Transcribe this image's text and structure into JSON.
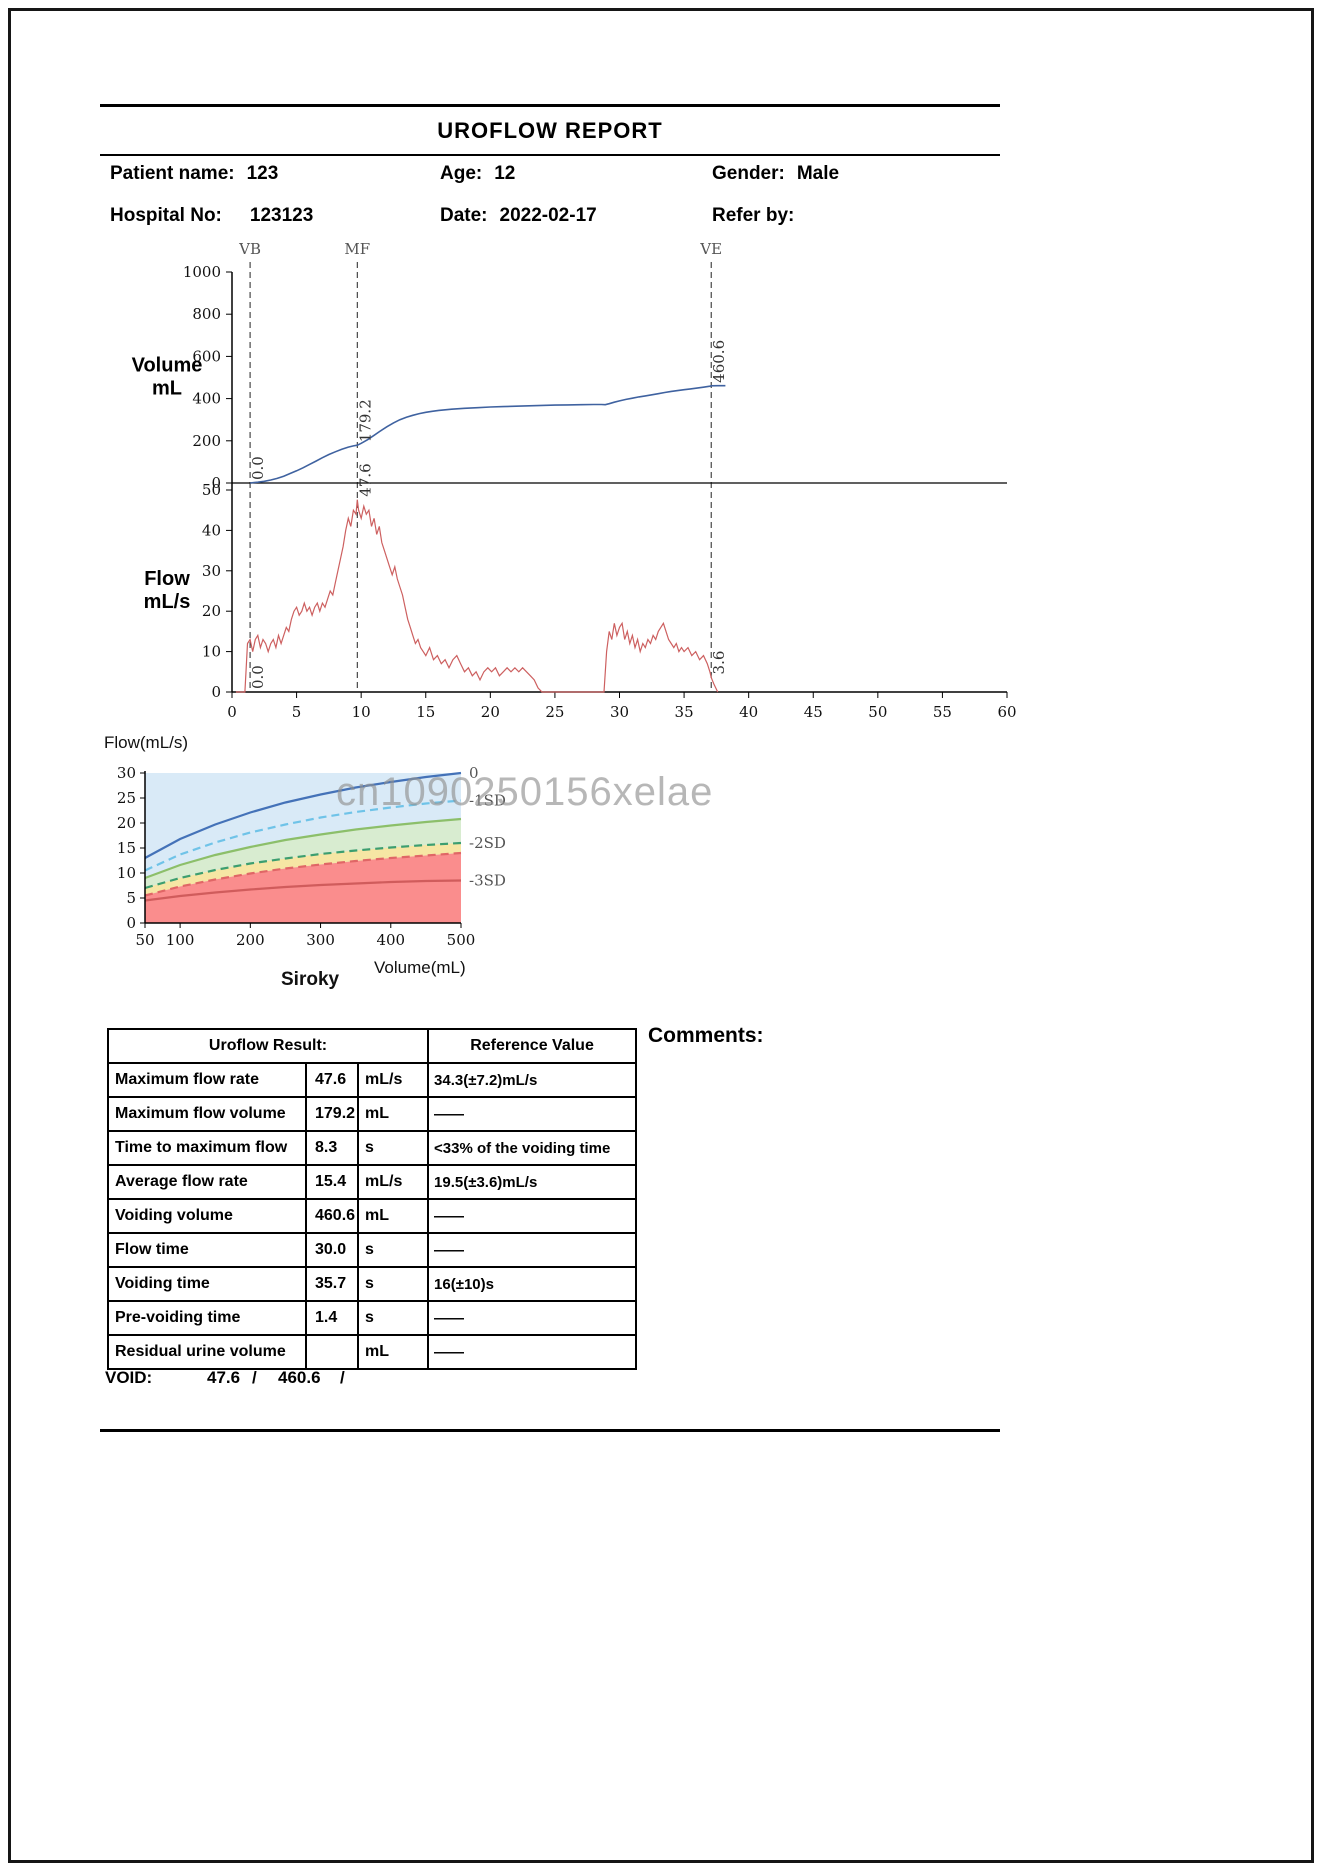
{
  "header": {
    "title": "UROFLOW REPORT",
    "fields": {
      "patient_label": "Patient name:",
      "patient_value": "123",
      "age_label": "Age:",
      "age_value": "12",
      "gender_label": "Gender:",
      "gender_value": "Male",
      "hospital_label": "Hospital No:",
      "hospital_value": "123123",
      "date_label": "Date:",
      "date_value": "2022-02-17",
      "refer_label": "Refer by:",
      "refer_value": ""
    }
  },
  "labels": {
    "flow_axis_caption": "Flow(mL/s)",
    "volume_axis_caption": "Volume(mL)",
    "nomogram_name": "Siroky",
    "comments": "Comments:",
    "void_label": "VOID:",
    "void_value1": "47.6",
    "void_sep1": "/",
    "void_value2": "460.6",
    "void_sep2": "/",
    "watermark": "cn1090250156xelae"
  },
  "result_table": {
    "header_result": "Uroflow Result:",
    "header_reference": "Reference Value",
    "rows": [
      {
        "label": "Maximum flow rate",
        "value": "47.6",
        "unit": "mL/s",
        "reference": "34.3(±7.2)mL/s"
      },
      {
        "label": "Maximum flow volume",
        "value": "179.2",
        "unit": "mL",
        "reference": "——"
      },
      {
        "label": "Time to maximum flow",
        "value": "8.3",
        "unit": "s",
        "reference": "<33% of the voiding time"
      },
      {
        "label": "Average flow rate",
        "value": "15.4",
        "unit": "mL/s",
        "reference": "19.5(±3.6)mL/s"
      },
      {
        "label": "Voiding volume",
        "value": "460.6",
        "unit": "mL",
        "reference": "——"
      },
      {
        "label": "Flow time",
        "value": "30.0",
        "unit": "s",
        "reference": "——"
      },
      {
        "label": "Voiding time",
        "value": "35.7",
        "unit": "s",
        "reference": "16(±10)s"
      },
      {
        "label": "Pre-voiding time",
        "value": "1.4",
        "unit": "s",
        "reference": "——"
      },
      {
        "label": "Residual urine volume",
        "value": "",
        "unit": "mL",
        "reference": "——"
      }
    ]
  },
  "chart_data": [
    {
      "type": "line",
      "title": "Volume",
      "ylabel_lines": [
        "Volume",
        "mL"
      ],
      "ylim": [
        0,
        1000
      ],
      "yticks": [
        0,
        200,
        400,
        600,
        800,
        1000
      ],
      "xlim": [
        0,
        60
      ],
      "color": "#3f62a0",
      "markers": [
        {
          "label": "VB",
          "x": 1.4
        },
        {
          "label": "MF",
          "x": 9.7
        },
        {
          "label": "VE",
          "x": 37.1
        }
      ],
      "annotations": [
        {
          "text": "0.0",
          "x": 1.4,
          "y": 0
        },
        {
          "text": "179.2",
          "x": 9.7,
          "y": 179.2
        },
        {
          "text": "460.6",
          "x": 37.1,
          "y": 460.6
        }
      ],
      "points": [
        [
          1.4,
          0
        ],
        [
          2,
          4
        ],
        [
          2.5,
          8
        ],
        [
          3,
          14
        ],
        [
          3.5,
          22
        ],
        [
          4,
          32
        ],
        [
          4.5,
          45
        ],
        [
          5,
          58
        ],
        [
          5.5,
          72
        ],
        [
          6,
          88
        ],
        [
          6.5,
          104
        ],
        [
          7,
          120
        ],
        [
          7.5,
          135
        ],
        [
          8,
          148
        ],
        [
          8.5,
          160
        ],
        [
          9,
          170
        ],
        [
          9.4,
          176
        ],
        [
          9.7,
          179.2
        ],
        [
          10,
          188
        ],
        [
          10.5,
          205
        ],
        [
          11,
          226
        ],
        [
          11.5,
          247
        ],
        [
          12,
          267
        ],
        [
          12.5,
          285
        ],
        [
          13,
          300
        ],
        [
          13.5,
          312
        ],
        [
          14,
          321
        ],
        [
          14.5,
          329
        ],
        [
          15,
          335
        ],
        [
          15.5,
          340
        ],
        [
          16,
          344
        ],
        [
          17,
          350
        ],
        [
          18,
          354
        ],
        [
          19,
          357
        ],
        [
          20,
          360
        ],
        [
          21,
          362
        ],
        [
          22,
          364
        ],
        [
          23,
          366
        ],
        [
          24,
          368
        ],
        [
          25,
          369
        ],
        [
          26,
          370
        ],
        [
          27,
          371
        ],
        [
          28,
          372
        ],
        [
          28.6,
          372
        ],
        [
          28.9,
          371
        ],
        [
          29.2,
          376
        ],
        [
          29.6,
          383
        ],
        [
          30,
          389
        ],
        [
          30.5,
          396
        ],
        [
          31,
          402
        ],
        [
          31.5,
          408
        ],
        [
          32,
          413
        ],
        [
          32.5,
          418
        ],
        [
          33,
          423
        ],
        [
          33.5,
          429
        ],
        [
          34,
          434
        ],
        [
          34.5,
          438
        ],
        [
          35,
          442
        ],
        [
          35.5,
          446
        ],
        [
          36,
          450
        ],
        [
          36.5,
          454
        ],
        [
          37,
          459
        ],
        [
          37.1,
          460.6
        ],
        [
          37.6,
          461
        ],
        [
          38.2,
          461
        ]
      ]
    },
    {
      "type": "line",
      "title": "Flow",
      "ylabel_lines": [
        "Flow",
        "mL/s"
      ],
      "ylim": [
        0,
        50
      ],
      "yticks": [
        0,
        10,
        20,
        30,
        40,
        50
      ],
      "xlim": [
        0,
        60
      ],
      "xticks": [
        0,
        5,
        10,
        15,
        20,
        25,
        30,
        35,
        40,
        45,
        50,
        55,
        60
      ],
      "color": "#cd6060",
      "annotations": [
        {
          "text": "0.0",
          "x": 1.4,
          "y": 0
        },
        {
          "text": "47.6",
          "x": 9.7,
          "y": 47.6
        },
        {
          "text": "3.6",
          "x": 37.1,
          "y": 3.6
        }
      ],
      "points": [
        [
          0.3,
          0
        ],
        [
          0.8,
          0
        ],
        [
          1.0,
          0
        ],
        [
          1.1,
          6
        ],
        [
          1.2,
          12
        ],
        [
          1.4,
          13
        ],
        [
          1.6,
          10
        ],
        [
          1.8,
          13
        ],
        [
          2.0,
          14
        ],
        [
          2.2,
          11
        ],
        [
          2.4,
          13
        ],
        [
          2.6,
          12
        ],
        [
          2.8,
          10
        ],
        [
          3.0,
          12
        ],
        [
          3.2,
          13
        ],
        [
          3.4,
          11
        ],
        [
          3.6,
          14
        ],
        [
          3.8,
          12
        ],
        [
          4.0,
          14
        ],
        [
          4.2,
          16
        ],
        [
          4.4,
          15
        ],
        [
          4.6,
          18
        ],
        [
          4.8,
          20
        ],
        [
          5.0,
          21
        ],
        [
          5.2,
          19
        ],
        [
          5.4,
          20
        ],
        [
          5.6,
          22
        ],
        [
          5.8,
          20
        ],
        [
          6.0,
          21
        ],
        [
          6.2,
          19
        ],
        [
          6.4,
          21
        ],
        [
          6.6,
          22
        ],
        [
          6.8,
          20
        ],
        [
          7.0,
          22
        ],
        [
          7.2,
          21
        ],
        [
          7.4,
          23
        ],
        [
          7.6,
          25
        ],
        [
          7.8,
          24
        ],
        [
          8.0,
          27
        ],
        [
          8.2,
          30
        ],
        [
          8.4,
          33
        ],
        [
          8.6,
          36
        ],
        [
          8.8,
          40
        ],
        [
          9.0,
          43
        ],
        [
          9.2,
          41
        ],
        [
          9.4,
          45
        ],
        [
          9.6,
          44
        ],
        [
          9.7,
          47.6
        ],
        [
          9.8,
          45
        ],
        [
          10.0,
          43
        ],
        [
          10.2,
          46
        ],
        [
          10.4,
          44
        ],
        [
          10.6,
          45
        ],
        [
          10.8,
          41
        ],
        [
          11.0,
          43
        ],
        [
          11.2,
          39
        ],
        [
          11.4,
          41
        ],
        [
          11.6,
          37
        ],
        [
          11.8,
          35
        ],
        [
          12.0,
          33
        ],
        [
          12.2,
          31
        ],
        [
          12.4,
          29
        ],
        [
          12.6,
          31
        ],
        [
          12.8,
          28
        ],
        [
          13.0,
          26
        ],
        [
          13.2,
          24
        ],
        [
          13.4,
          21
        ],
        [
          13.6,
          18
        ],
        [
          13.8,
          16
        ],
        [
          14.0,
          14
        ],
        [
          14.2,
          12
        ],
        [
          14.4,
          13
        ],
        [
          14.6,
          11
        ],
        [
          14.8,
          10
        ],
        [
          15.0,
          9
        ],
        [
          15.3,
          11
        ],
        [
          15.6,
          8
        ],
        [
          15.9,
          9
        ],
        [
          16.2,
          7
        ],
        [
          16.5,
          8
        ],
        [
          16.8,
          6
        ],
        [
          17.1,
          8
        ],
        [
          17.4,
          9
        ],
        [
          17.7,
          7
        ],
        [
          18.0,
          5
        ],
        [
          18.3,
          6
        ],
        [
          18.6,
          4
        ],
        [
          18.9,
          5
        ],
        [
          19.2,
          3
        ],
        [
          19.5,
          5
        ],
        [
          19.8,
          6
        ],
        [
          20.1,
          5
        ],
        [
          20.4,
          6
        ],
        [
          20.7,
          4
        ],
        [
          21.0,
          5
        ],
        [
          21.3,
          6
        ],
        [
          21.6,
          5
        ],
        [
          21.9,
          6
        ],
        [
          22.2,
          5
        ],
        [
          22.5,
          6
        ],
        [
          22.8,
          5
        ],
        [
          23.1,
          4
        ],
        [
          23.4,
          3
        ],
        [
          23.7,
          1
        ],
        [
          24.0,
          0
        ],
        [
          28.8,
          0
        ],
        [
          29.0,
          10
        ],
        [
          29.2,
          15
        ],
        [
          29.4,
          13
        ],
        [
          29.6,
          17
        ],
        [
          29.8,
          14
        ],
        [
          30.0,
          16
        ],
        [
          30.2,
          17
        ],
        [
          30.4,
          13
        ],
        [
          30.6,
          15
        ],
        [
          30.8,
          12
        ],
        [
          31.0,
          14
        ],
        [
          31.2,
          11
        ],
        [
          31.4,
          13
        ],
        [
          31.6,
          10
        ],
        [
          31.8,
          12
        ],
        [
          32.0,
          11
        ],
        [
          32.2,
          13
        ],
        [
          32.4,
          12
        ],
        [
          32.6,
          14
        ],
        [
          32.8,
          13
        ],
        [
          33.0,
          15
        ],
        [
          33.2,
          16
        ],
        [
          33.4,
          17
        ],
        [
          33.6,
          15
        ],
        [
          33.8,
          13
        ],
        [
          34.0,
          12
        ],
        [
          34.2,
          11
        ],
        [
          34.4,
          12
        ],
        [
          34.6,
          10
        ],
        [
          34.8,
          11
        ],
        [
          35.0,
          10
        ],
        [
          35.3,
          11
        ],
        [
          35.6,
          9
        ],
        [
          35.9,
          10
        ],
        [
          36.2,
          8
        ],
        [
          36.5,
          9
        ],
        [
          36.8,
          7
        ],
        [
          37.0,
          5
        ],
        [
          37.1,
          3.6
        ],
        [
          37.3,
          2
        ],
        [
          37.6,
          0
        ]
      ]
    },
    {
      "type": "area",
      "title": "Siroky nomogram",
      "xlabel": "Volume(mL)",
      "ylabel": "Flow(mL/s)",
      "xlim": [
        50,
        500
      ],
      "ylim": [
        0,
        30
      ],
      "xticks": [
        50,
        100,
        200,
        300,
        400,
        500
      ],
      "yticks": [
        0,
        5,
        10,
        15,
        20,
        25,
        30
      ],
      "bg_color": "#d9eaf7",
      "x": [
        50,
        100,
        150,
        200,
        250,
        300,
        350,
        400,
        450,
        500
      ],
      "curves": [
        {
          "name": "mean",
          "style": "solid",
          "color": "#4472b8",
          "values": [
            13,
            16.8,
            19.7,
            22.1,
            24.1,
            25.7,
            27.1,
            28.2,
            29.2,
            30
          ]
        },
        {
          "name": "-1SD",
          "style": "dashed",
          "color": "#6fc3e8",
          "values": [
            10.5,
            13.7,
            16.1,
            18.1,
            19.7,
            21.1,
            22.2,
            23.1,
            23.9,
            24.5
          ]
        },
        {
          "name": "green-upper",
          "style": "solid",
          "color": "#8cbf6a",
          "values": [
            9,
            11.6,
            13.6,
            15.2,
            16.6,
            17.7,
            18.7,
            19.5,
            20.2,
            20.8
          ]
        },
        {
          "name": "-2SD",
          "style": "dashed",
          "color": "#3c9e70",
          "values": [
            7,
            9,
            10.6,
            11.9,
            12.9,
            13.8,
            14.5,
            15.1,
            15.6,
            16
          ]
        },
        {
          "name": "red-dashed",
          "style": "dashed",
          "color": "#e06666",
          "values": [
            5.5,
            7.3,
            8.7,
            9.9,
            10.9,
            11.7,
            12.4,
            13,
            13.5,
            14
          ]
        },
        {
          "name": "-3SD",
          "style": "solid",
          "color": "#d05c5c",
          "values": [
            4.5,
            5.4,
            6.1,
            6.7,
            7.2,
            7.6,
            7.9,
            8.2,
            8.4,
            8.5
          ]
        }
      ],
      "bands": [
        {
          "top": "green-upper",
          "bottom": "-2SD",
          "color": "#d8ecd0"
        },
        {
          "top": "-2SD",
          "bottom": "red-dashed",
          "color": "#f6e6a4"
        },
        {
          "top": "red-dashed",
          "bottom": 0,
          "color": "#fa8d8d"
        }
      ],
      "sd_labels": [
        {
          "text": "0",
          "y": 30
        },
        {
          "text": "-1SD",
          "y": 24.5
        },
        {
          "text": "-2SD",
          "y": 16
        },
        {
          "text": "-3SD",
          "y": 8.5
        }
      ]
    }
  ]
}
